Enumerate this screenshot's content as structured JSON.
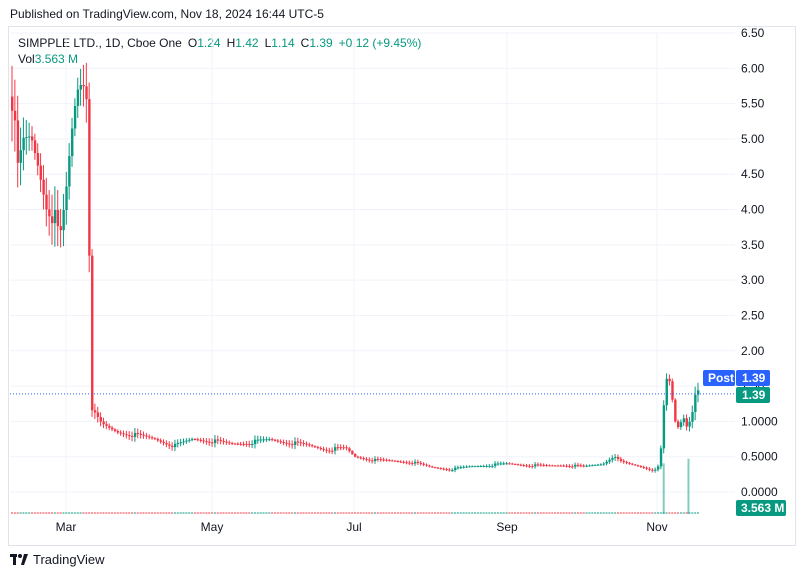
{
  "header": {
    "published": "Published on TradingView.com, Nov 18, 2024 16:44 UTC-5"
  },
  "legend": {
    "symbol": "SIMPPLE LTD., 1D, Cboe One",
    "o_label": "O",
    "o_value": "1.24",
    "h_label": "H",
    "h_value": "1.42",
    "l_label": "L",
    "l_value": "1.14",
    "c_label": "C",
    "c_value": "1.39",
    "change": "+0.12 (+9.45%)",
    "vol_label": "Vol",
    "vol_value": "3.563 M"
  },
  "badges": {
    "post_label": "Post",
    "post_value": "1.39",
    "last_value": "1.39",
    "volume_value": "3.563 M"
  },
  "footer": {
    "brand": "TradingView"
  },
  "colors": {
    "up": "#089981",
    "down": "#f23645",
    "badge_blue": "#2962ff",
    "badge_green": "#089981",
    "grid": "#f0f3fa"
  },
  "chart_data": {
    "type": "candlestick",
    "y_ticks": [
      "6.50",
      "6.00",
      "5.50",
      "5.00",
      "4.50",
      "4.00",
      "3.50",
      "3.00",
      "2.50",
      "2.00",
      "1.50",
      "1.0000",
      "0.5000",
      "0.0000"
    ],
    "y_range": [
      -0.3,
      6.5
    ],
    "x_ticks": [
      "Mar",
      "May",
      "Jul",
      "Sep",
      "Nov"
    ],
    "last_price": 1.39,
    "segments": [
      [
        0,
        5.6
      ],
      [
        3,
        4.5
      ],
      [
        6,
        4.9
      ],
      [
        10,
        5.0
      ],
      [
        14,
        4.6
      ],
      [
        18,
        4.1
      ],
      [
        22,
        3.9
      ],
      [
        25,
        3.5
      ],
      [
        28,
        4.1
      ],
      [
        31,
        5.0
      ],
      [
        34,
        5.7
      ],
      [
        37,
        5.9
      ],
      [
        40,
        5.6
      ],
      [
        41,
        1.3
      ],
      [
        43,
        1.1
      ],
      [
        47,
        0.95
      ],
      [
        55,
        0.85
      ],
      [
        65,
        0.8
      ],
      [
        75,
        0.75
      ],
      [
        85,
        0.65
      ],
      [
        95,
        0.75
      ],
      [
        105,
        0.72
      ],
      [
        115,
        0.68
      ],
      [
        125,
        0.7
      ],
      [
        135,
        0.74
      ],
      [
        145,
        0.7
      ],
      [
        155,
        0.66
      ],
      [
        165,
        0.6
      ],
      [
        175,
        0.62
      ],
      [
        180,
        0.5
      ],
      [
        190,
        0.45
      ],
      [
        200,
        0.44
      ],
      [
        210,
        0.42
      ],
      [
        220,
        0.35
      ],
      [
        230,
        0.32
      ],
      [
        240,
        0.36
      ],
      [
        250,
        0.38
      ],
      [
        260,
        0.4
      ],
      [
        270,
        0.38
      ],
      [
        280,
        0.37
      ],
      [
        290,
        0.38
      ],
      [
        300,
        0.36
      ],
      [
        310,
        0.4
      ],
      [
        315,
        0.5
      ],
      [
        320,
        0.42
      ],
      [
        330,
        0.36
      ],
      [
        338,
        0.3
      ],
      [
        340,
        0.4
      ],
      [
        342,
        1.2
      ],
      [
        344,
        1.7
      ],
      [
        346,
        1.4
      ],
      [
        348,
        1.0
      ],
      [
        350,
        0.9
      ],
      [
        352,
        1.1
      ],
      [
        354,
        0.95
      ],
      [
        356,
        1.05
      ],
      [
        358,
        1.3
      ],
      [
        360,
        1.39
      ]
    ],
    "volume_spikes": [
      [
        342,
        0.78
      ],
      [
        355,
        0.85
      ]
    ]
  }
}
